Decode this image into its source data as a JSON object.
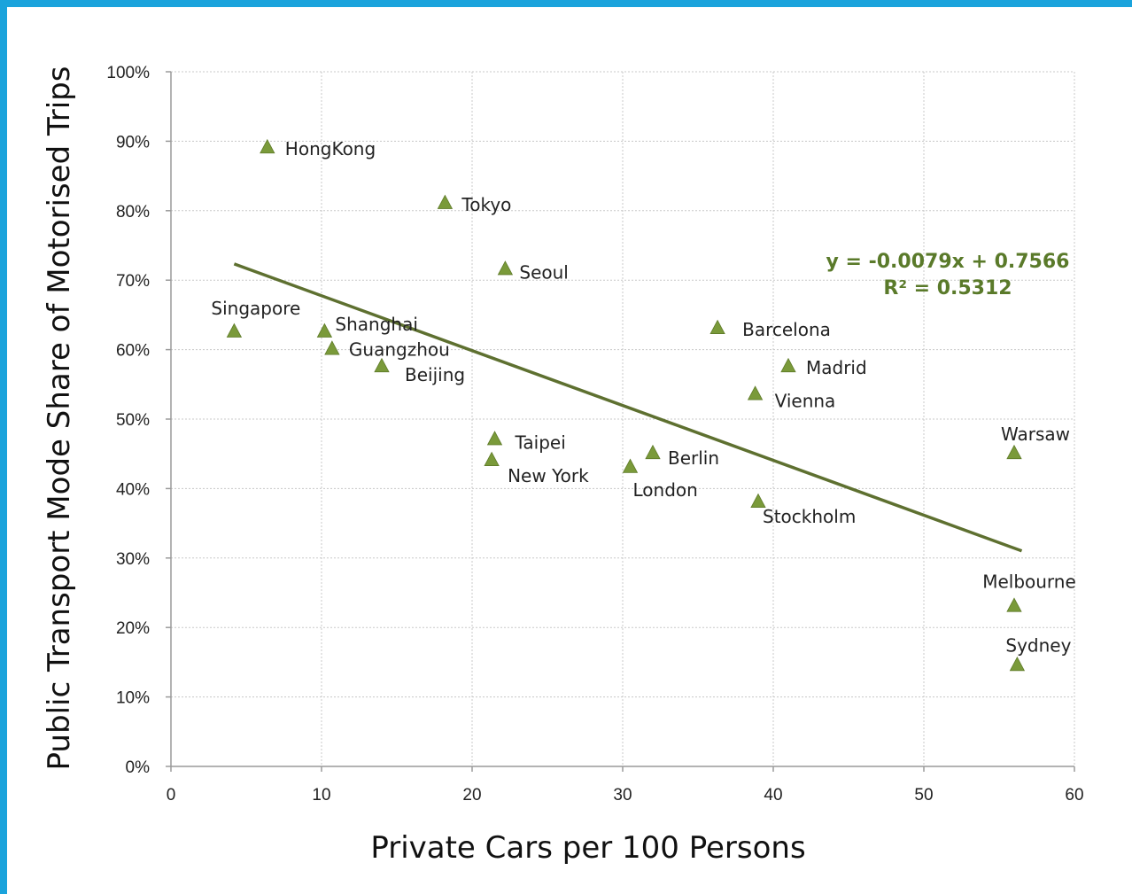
{
  "chart_data": {
    "type": "scatter",
    "xlabel": "Private Cars per 100 Persons",
    "ylabel": "Public Transport Mode Share of Motorised Trips",
    "xlim": [
      0,
      60
    ],
    "ylim": [
      0,
      1
    ],
    "x_ticks": [
      0,
      10,
      20,
      30,
      40,
      50,
      60
    ],
    "y_ticks": [
      "0%",
      "10%",
      "20%",
      "30%",
      "40%",
      "50%",
      "60%",
      "70%",
      "80%",
      "90%",
      "100%"
    ],
    "grid": true,
    "marker_color": "#7a9a3a",
    "trend_color": "#5e7030",
    "points": [
      {
        "name": "HongKong",
        "x": 6.4,
        "y": 0.89
      },
      {
        "name": "Tokyo",
        "x": 18.2,
        "y": 0.81
      },
      {
        "name": "Seoul",
        "x": 22.2,
        "y": 0.715
      },
      {
        "name": "Singapore",
        "x": 4.2,
        "y": 0.625
      },
      {
        "name": "Shanghai",
        "x": 10.2,
        "y": 0.625
      },
      {
        "name": "Guangzhou",
        "x": 10.7,
        "y": 0.6
      },
      {
        "name": "Beijing",
        "x": 14.0,
        "y": 0.575
      },
      {
        "name": "Barcelona",
        "x": 36.3,
        "y": 0.63
      },
      {
        "name": "Madrid",
        "x": 41.0,
        "y": 0.575
      },
      {
        "name": "Vienna",
        "x": 38.8,
        "y": 0.535
      },
      {
        "name": "Taipei",
        "x": 21.5,
        "y": 0.47
      },
      {
        "name": "New York",
        "x": 21.3,
        "y": 0.44
      },
      {
        "name": "London",
        "x": 30.5,
        "y": 0.43
      },
      {
        "name": "Berlin",
        "x": 32.0,
        "y": 0.45
      },
      {
        "name": "Stockholm",
        "x": 39.0,
        "y": 0.38
      },
      {
        "name": "Warsaw",
        "x": 56.0,
        "y": 0.45
      },
      {
        "name": "Melbourne",
        "x": 56.0,
        "y": 0.23
      },
      {
        "name": "Sydney",
        "x": 56.2,
        "y": 0.145
      }
    ],
    "trendline": {
      "x_start": 4.2,
      "x_end": 56.5,
      "equation": "y = -0.0079x + 0.7566",
      "r_squared": "R² = 0.5312"
    }
  }
}
